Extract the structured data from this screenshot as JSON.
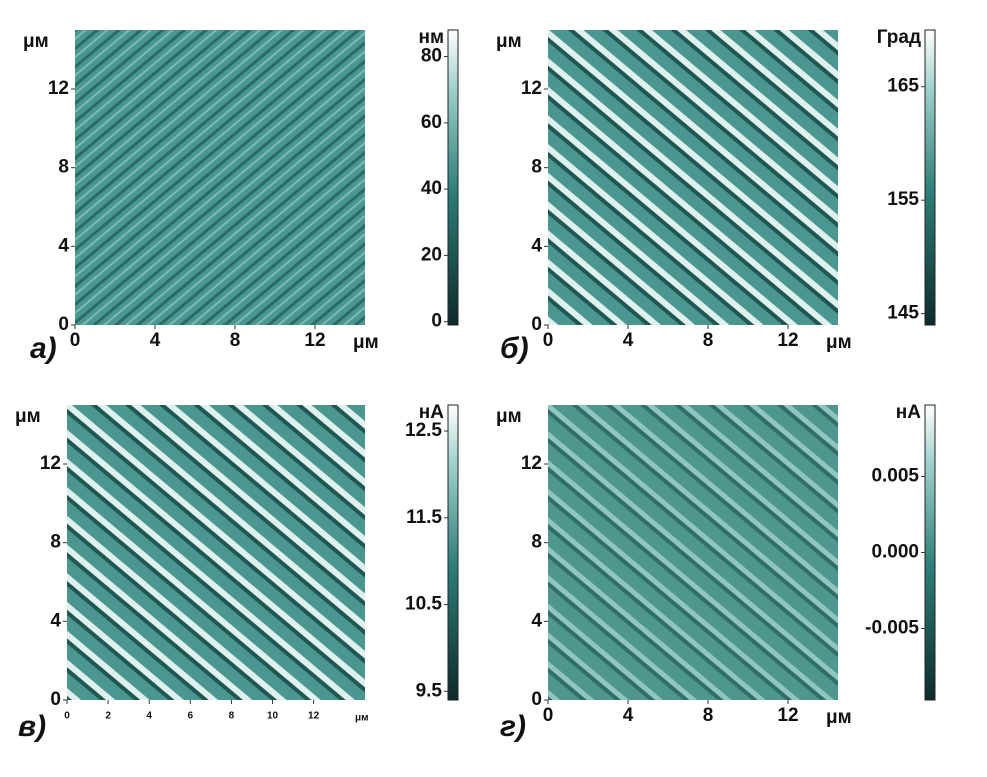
{
  "chart_data": [
    {
      "type": "heatmap",
      "panel_label": "а)",
      "xlabel": "μм",
      "ylabel": "μм",
      "xlim": [
        0,
        14.5
      ],
      "ylim": [
        0,
        15
      ],
      "xticks": [
        0,
        4,
        8,
        12
      ],
      "yticks": [
        0,
        4,
        8,
        12
      ],
      "colorbar": {
        "label": "нм",
        "lim": [
          -1,
          88
        ],
        "ticks": [
          0,
          20,
          40,
          60,
          80
        ]
      }
    },
    {
      "type": "heatmap",
      "panel_label": "б)",
      "xlabel": "μм",
      "ylabel": "μм",
      "xlim": [
        0,
        14.5
      ],
      "ylim": [
        0,
        15
      ],
      "xticks": [
        0,
        4,
        8,
        12
      ],
      "yticks": [
        0,
        4,
        8,
        12
      ],
      "colorbar": {
        "label": "Град",
        "lim": [
          144,
          170
        ],
        "ticks": [
          145,
          155,
          165
        ]
      }
    },
    {
      "type": "heatmap",
      "panel_label": "в)",
      "xlabel": "μм",
      "ylabel": "μм",
      "xlim": [
        0,
        14.5
      ],
      "ylim": [
        0,
        15
      ],
      "xticks": [
        0,
        2,
        4,
        6,
        8,
        10,
        12
      ],
      "yticks": [
        0,
        4,
        8,
        12
      ],
      "colorbar": {
        "label": "нА",
        "lim": [
          9.4,
          12.8
        ],
        "ticks": [
          9.5,
          10.5,
          11.5,
          12.5
        ]
      }
    },
    {
      "type": "heatmap",
      "panel_label": "г)",
      "xlabel": "μм",
      "ylabel": "μм",
      "xlim": [
        0,
        14.5
      ],
      "ylim": [
        0,
        15
      ],
      "xticks": [
        0,
        4,
        8,
        12
      ],
      "yticks": [
        0,
        4,
        8,
        12
      ],
      "colorbar": {
        "label": "нА",
        "lim": [
          -0.0097,
          0.0097
        ],
        "ticks": [
          -0.005,
          {
            "value": 0,
            "label": "0.000"
          },
          0.005
        ]
      }
    }
  ]
}
